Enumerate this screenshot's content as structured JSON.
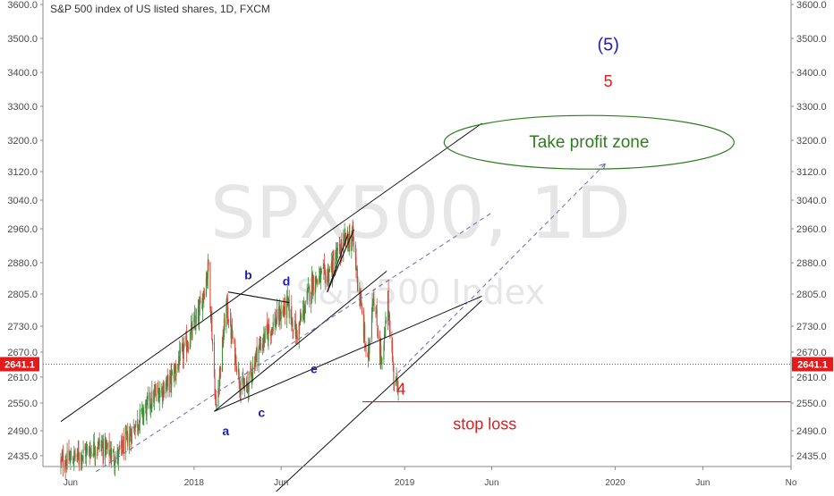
{
  "chart_data": {
    "type": "candlestick",
    "title": "S&P 500 index of US listed shares, 1D, FXCM",
    "watermark_symbol": "SPX500, 1D",
    "watermark_name": "S&P 500 Index",
    "y_ticks": [
      "2435.0",
      "2490.0",
      "2550.0",
      "2610.0",
      "2670.0",
      "2730.0",
      "2805.0",
      "2880.0",
      "2960.0",
      "3040.0",
      "3120.0",
      "3200.0",
      "3300.0",
      "3400.0",
      "3500.0",
      "3600.0"
    ],
    "y_tick_values": [
      2435,
      2490,
      2550,
      2610,
      2670,
      2730,
      2805,
      2880,
      2960,
      3040,
      3120,
      3200,
      3300,
      3400,
      3500,
      3600
    ],
    "x_ticks": [
      "Jun",
      "2018",
      "Jun",
      "2019",
      "Jun",
      "2020",
      "Jun",
      "No"
    ],
    "x_tick_dates": [
      "2017-06-01",
      "2018-01-01",
      "2018-06-01",
      "2019-01-01",
      "2019-06-01",
      "2020-01-01",
      "2020-06-01",
      "2020-11-01"
    ],
    "current_price": "2641.1",
    "current_price_value": 2641.1,
    "price_path": [
      [
        "2017-05-15",
        2420
      ],
      [
        "2017-06-15",
        2435
      ],
      [
        "2017-07-20",
        2460
      ],
      [
        "2017-08-20",
        2430
      ],
      [
        "2017-09-20",
        2500
      ],
      [
        "2017-10-20",
        2560
      ],
      [
        "2017-11-20",
        2600
      ],
      [
        "2017-12-20",
        2690
      ],
      [
        "2018-01-10",
        2760
      ],
      [
        "2018-01-26",
        2872
      ],
      [
        "2018-02-08",
        2532
      ],
      [
        "2018-02-26",
        2780
      ],
      [
        "2018-03-23",
        2588
      ],
      [
        "2018-04-02",
        2582
      ],
      [
        "2018-04-20",
        2670
      ],
      [
        "2018-05-10",
        2720
      ],
      [
        "2018-06-12",
        2780
      ],
      [
        "2018-06-28",
        2710
      ],
      [
        "2018-07-25",
        2835
      ],
      [
        "2018-08-20",
        2850
      ],
      [
        "2018-09-20",
        2930
      ],
      [
        "2018-10-03",
        2940
      ],
      [
        "2018-10-29",
        2640
      ],
      [
        "2018-11-07",
        2810
      ],
      [
        "2018-11-23",
        2635
      ],
      [
        "2018-12-03",
        2790
      ],
      [
        "2018-12-14",
        2600
      ],
      [
        "2018-12-21",
        2600
      ]
    ],
    "channel_lines": [
      [
        [
          "2017-05-15",
          2510
        ],
        [
          "2019-05-15",
          3250
        ]
      ],
      [
        [
          "2018-02-05",
          2532
        ],
        [
          "2019-05-15",
          2800
        ]
      ],
      [
        [
          "2018-05-01",
          2330
        ],
        [
          "2019-05-15",
          2790
        ]
      ],
      [
        [
          "2018-02-05",
          2532
        ],
        [
          "2018-12-01",
          2860
        ]
      ]
    ],
    "dashed_lines": [
      [
        [
          "2017-07-15",
          2400
        ],
        [
          "2019-06-01",
          3005
        ]
      ],
      [
        [
          "2018-12-20",
          2620
        ],
        [
          "2019-12-15",
          3140
        ]
      ]
    ],
    "wedge_lines": [
      [
        [
          "2018-03-01",
          2810
        ],
        [
          "2018-06-15",
          2785
        ]
      ],
      [
        [
          "2018-08-20",
          2810
        ],
        [
          "2018-09-25",
          2948
        ]
      ],
      [
        [
          "2018-08-20",
          2810
        ],
        [
          "2018-10-05",
          2958
        ]
      ]
    ],
    "annotations": {
      "wave_labels": [
        {
          "text": "a",
          "date": "2018-02-25",
          "price": 2480
        },
        {
          "text": "b",
          "date": "2018-04-05",
          "price": 2840
        },
        {
          "text": "c",
          "date": "2018-04-28",
          "price": 2520
        },
        {
          "text": "d",
          "date": "2018-06-10",
          "price": 2825
        },
        {
          "text": "e",
          "date": "2018-07-28",
          "price": 2620
        }
      ],
      "wave4": {
        "text": "4",
        "date": "2018-12-26",
        "price": 2570
      },
      "wave5": {
        "text": "5",
        "date": "2019-12-20",
        "price": 3358
      },
      "wave5_paren": {
        "text": "(5)",
        "date": "2019-12-20",
        "price": 3465
      },
      "take_profit": {
        "text": "Take profit zone",
        "date": "2019-11-20",
        "price": 3195
      },
      "take_profit_ellipse": {
        "center_date": "2019-11-20",
        "center_price": 3195
      },
      "stop_loss": {
        "text": "stop loss",
        "date": "2019-05-20",
        "price": 2505
      },
      "stop_loss_line": {
        "from": "2018-10-20",
        "price": 2553
      }
    },
    "colors": {
      "candle_up": "#3a8f3a",
      "candle_down": "#e0433a",
      "line": "#111111",
      "dashed": "#6b6bb5",
      "stop": "#e31b1b",
      "price_tag": "#e31b1b",
      "take_profit": "#2e7d1f"
    }
  }
}
